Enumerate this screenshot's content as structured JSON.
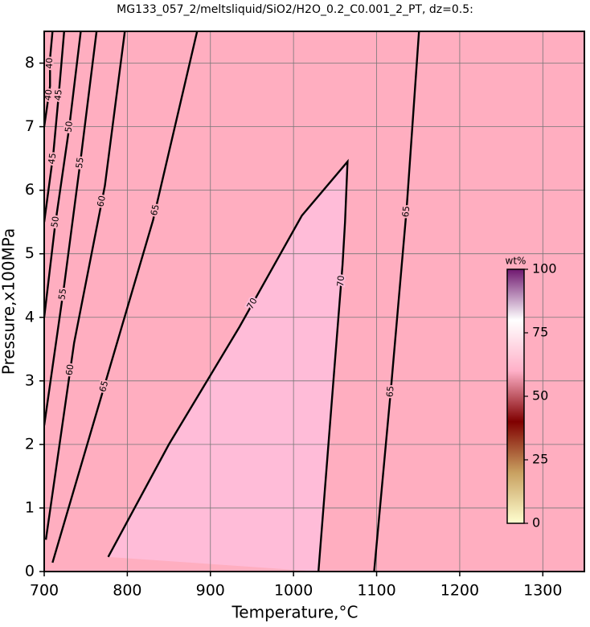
{
  "chart_data": {
    "type": "contour",
    "title": "MG133_057_2/meltsliquid/SiO2/H2O_0.2_C0.001_2_PT, dz=0.5:",
    "x_label": "Temperature,°C",
    "y_label": "Pressure,x100MPa",
    "xlim": [
      700,
      1350
    ],
    "ylim": [
      0,
      8.5
    ],
    "xticks": [
      700,
      800,
      900,
      1000,
      1100,
      1200,
      1300
    ],
    "yticks": [
      0,
      1,
      2,
      3,
      4,
      5,
      6,
      7,
      8
    ],
    "grid": true,
    "background": "#ffaec0",
    "contours": [
      {
        "level": 40,
        "x": [
          700,
          707,
          707,
          710
        ],
        "y": [
          7.0,
          7.64,
          8.07,
          8.5
        ],
        "labels": [
          "40",
          "40"
        ]
      },
      {
        "level": 45,
        "x": [
          700,
          711,
          718,
          724
        ],
        "y": [
          5.5,
          6.58,
          7.58,
          8.5
        ],
        "labels": [
          "45",
          "45"
        ]
      },
      {
        "level": 50,
        "x": [
          700,
          713,
          730,
          744
        ],
        "y": [
          4.0,
          5.44,
          6.98,
          8.5
        ],
        "labels": [
          "50",
          "50"
        ]
      },
      {
        "level": 55,
        "x": [
          700,
          724,
          744,
          763
        ],
        "y": [
          2.3,
          4.5,
          6.5,
          8.5
        ],
        "labels": [
          "55",
          "55"
        ]
      },
      {
        "level": 60,
        "x": [
          702,
          736,
          773,
          797
        ],
        "y": [
          0.5,
          3.6,
          6.07,
          8.5
        ],
        "labels": [
          "60",
          "60"
        ]
      },
      {
        "level": 65,
        "x": [
          710,
          765,
          831,
          884
        ],
        "y": [
          0.14,
          2.59,
          5.53,
          8.5
        ],
        "labels": [
          "65",
          "65"
        ]
      },
      {
        "level": 70,
        "x": [
          777,
          850,
          935,
          1010,
          1065,
          1062,
          1059,
          1045,
          1030
        ],
        "y": [
          0.23,
          2.0,
          3.85,
          5.6,
          6.45,
          5.5,
          4.83,
          2.5,
          0
        ],
        "labels": [
          "70",
          "70"
        ],
        "fill": "#ffbcd8"
      },
      {
        "level": 65,
        "x": [
          1097,
          1117,
          1136,
          1151
        ],
        "y": [
          0,
          2.84,
          5.69,
          8.5
        ],
        "labels": [
          "65",
          "65"
        ]
      }
    ],
    "colorbar": {
      "label": "wt%",
      "lim": [
        0,
        100
      ],
      "ticks": [
        0,
        25,
        50,
        75,
        100
      ],
      "colors": [
        "#ffffd0",
        "#c8a060",
        "#800000",
        "#ffb0c8",
        "#ffffff",
        "#701870"
      ]
    }
  }
}
